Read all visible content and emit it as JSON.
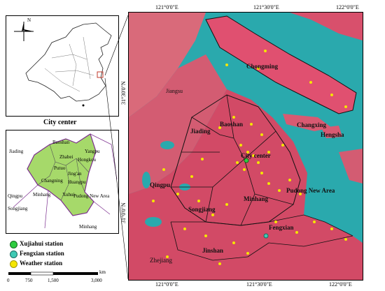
{
  "top_lon_labels": [
    "121°0'0\"E",
    "121°30'0\"E",
    "122°0'0\"E"
  ],
  "bottom_lon_labels": [
    "121°0'0\"E",
    "121°30'0\"E",
    "122°0'0\"E"
  ],
  "lat_labels": [
    "31°30'0\"N",
    "31°0'0\"N"
  ],
  "inset_china": {
    "north_label": "N"
  },
  "city_center_title": "City center",
  "city_center_districts": [
    "Baoshan",
    "Yangpu",
    "Zhabei",
    "Hongkou",
    "Jiading",
    "Putuo",
    "Jing'an",
    "Changning",
    "Huangpu",
    "Xuhui",
    "Minhang",
    "Qingpu",
    "Pudong New Area",
    "Songjiang",
    "Minhang"
  ],
  "main_map_labels": [
    "Chongming",
    "Jiangsu",
    "Baoshan",
    "Jiading",
    "Changxing",
    "Hengsha",
    "City center",
    "Qingpu",
    "Minhang",
    "Pudong New Area",
    "Songjiang",
    "Fengxian",
    "Jinshan",
    "Zhejiang"
  ],
  "legend": [
    {
      "label": "Xujiahui station",
      "color": "#2ecc40"
    },
    {
      "label": "Fengxian station",
      "color": "#3fc9b4"
    },
    {
      "label": "Weather station",
      "color": "#f5e600"
    }
  ],
  "scale": {
    "unit": "km",
    "ticks": [
      "0",
      "750",
      "1,500",
      "3,000"
    ]
  },
  "colors": {
    "water": "#2aa9ad",
    "urban": "#d94466",
    "land": "#e07a86"
  }
}
